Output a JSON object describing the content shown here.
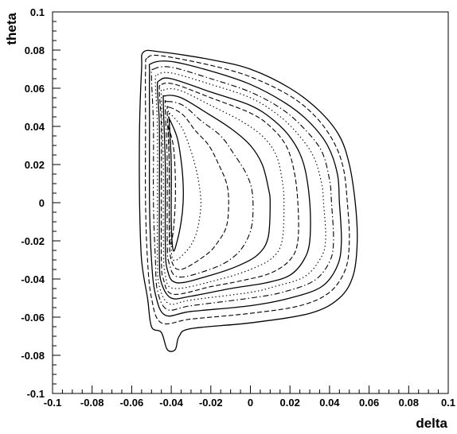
{
  "chart_data": {
    "type": "contour",
    "title": "",
    "xlabel": "delta",
    "ylabel": "theta",
    "xlim": [
      -0.1,
      0.1
    ],
    "ylim": [
      -0.1,
      0.1
    ],
    "xticks": [
      "-0.1",
      "-0.08",
      "-0.06",
      "-0.04",
      "-0.02",
      "0",
      "0.02",
      "0.04",
      "0.06",
      "0.08",
      "0.1"
    ],
    "yticks": [
      "-0.1",
      "-0.08",
      "-0.06",
      "-0.04",
      "-0.02",
      "0",
      "0.02",
      "0.04",
      "0.06",
      "0.08",
      "0.1"
    ],
    "grid": false,
    "legend": "none",
    "line_color": "#000000",
    "density_peak": {
      "delta": -0.042,
      "theta": 0.0
    },
    "contours": [
      {
        "level": 1,
        "style": "solid",
        "points": [
          [
            -0.054,
            0.079
          ],
          [
            -0.045,
            0.079
          ],
          [
            -0.02,
            0.075
          ],
          [
            0.0,
            0.07
          ],
          [
            0.02,
            0.06
          ],
          [
            0.035,
            0.048
          ],
          [
            0.045,
            0.035
          ],
          [
            0.05,
            0.02
          ],
          [
            0.053,
            0.0
          ],
          [
            0.054,
            -0.02
          ],
          [
            0.052,
            -0.038
          ],
          [
            0.045,
            -0.05
          ],
          [
            0.03,
            -0.058
          ],
          [
            0.0,
            -0.063
          ],
          [
            -0.03,
            -0.066
          ],
          [
            -0.036,
            -0.07
          ],
          [
            -0.038,
            -0.077
          ],
          [
            -0.042,
            -0.077
          ],
          [
            -0.045,
            -0.068
          ],
          [
            -0.05,
            -0.065
          ],
          [
            -0.052,
            -0.05
          ],
          [
            -0.055,
            -0.03
          ],
          [
            -0.056,
            0.0
          ],
          [
            -0.056,
            0.04
          ],
          [
            -0.055,
            0.07
          ]
        ]
      },
      {
        "level": 2,
        "style": "dashed",
        "points": [
          [
            -0.052,
            0.076
          ],
          [
            -0.045,
            0.077
          ],
          [
            -0.02,
            0.072
          ],
          [
            0.0,
            0.066
          ],
          [
            0.02,
            0.056
          ],
          [
            0.033,
            0.045
          ],
          [
            0.042,
            0.032
          ],
          [
            0.047,
            0.018
          ],
          [
            0.049,
            0.0
          ],
          [
            0.05,
            -0.02
          ],
          [
            0.048,
            -0.035
          ],
          [
            0.04,
            -0.047
          ],
          [
            0.025,
            -0.054
          ],
          [
            0.0,
            -0.058
          ],
          [
            -0.03,
            -0.061
          ],
          [
            -0.045,
            -0.063
          ],
          [
            -0.05,
            -0.05
          ],
          [
            -0.052,
            -0.03
          ],
          [
            -0.053,
            0.0
          ],
          [
            -0.053,
            0.04
          ],
          [
            -0.053,
            0.07
          ]
        ]
      },
      {
        "level": 3,
        "style": "solid",
        "points": [
          [
            -0.05,
            0.073
          ],
          [
            -0.04,
            0.074
          ],
          [
            -0.02,
            0.069
          ],
          [
            0.0,
            0.062
          ],
          [
            0.018,
            0.052
          ],
          [
            0.03,
            0.042
          ],
          [
            0.039,
            0.03
          ],
          [
            0.044,
            0.015
          ],
          [
            0.045,
            0.0
          ],
          [
            0.046,
            -0.02
          ],
          [
            0.044,
            -0.033
          ],
          [
            0.036,
            -0.044
          ],
          [
            0.02,
            -0.05
          ],
          [
            0.0,
            -0.054
          ],
          [
            -0.03,
            -0.057
          ],
          [
            -0.043,
            -0.059
          ],
          [
            -0.048,
            -0.048
          ],
          [
            -0.05,
            -0.03
          ],
          [
            -0.051,
            0.0
          ],
          [
            -0.051,
            0.04
          ],
          [
            -0.051,
            0.068
          ]
        ]
      },
      {
        "level": 4,
        "style": "dashdot",
        "points": [
          [
            -0.049,
            0.07
          ],
          [
            -0.04,
            0.071
          ],
          [
            -0.02,
            0.065
          ],
          [
            0.0,
            0.058
          ],
          [
            0.016,
            0.049
          ],
          [
            0.027,
            0.039
          ],
          [
            0.036,
            0.027
          ],
          [
            0.04,
            0.012
          ],
          [
            0.041,
            0.0
          ],
          [
            0.042,
            -0.02
          ],
          [
            0.04,
            -0.031
          ],
          [
            0.032,
            -0.041
          ],
          [
            0.016,
            -0.047
          ],
          [
            0.0,
            -0.05
          ],
          [
            -0.03,
            -0.054
          ],
          [
            -0.042,
            -0.056
          ],
          [
            -0.047,
            -0.046
          ],
          [
            -0.048,
            -0.03
          ],
          [
            -0.049,
            0.0
          ],
          [
            -0.049,
            0.04
          ],
          [
            -0.05,
            0.066
          ]
        ]
      },
      {
        "level": 5,
        "style": "dotted",
        "points": [
          [
            -0.047,
            0.067
          ],
          [
            -0.04,
            0.068
          ],
          [
            -0.02,
            0.062
          ],
          [
            0.0,
            0.055
          ],
          [
            0.014,
            0.046
          ],
          [
            0.024,
            0.036
          ],
          [
            0.032,
            0.024
          ],
          [
            0.036,
            0.01
          ],
          [
            0.037,
            0.0
          ],
          [
            0.038,
            -0.02
          ],
          [
            0.035,
            -0.03
          ],
          [
            0.027,
            -0.039
          ],
          [
            0.012,
            -0.044
          ],
          [
            0.0,
            -0.047
          ],
          [
            -0.03,
            -0.051
          ],
          [
            -0.041,
            -0.053
          ],
          [
            -0.046,
            -0.044
          ],
          [
            -0.047,
            -0.03
          ],
          [
            -0.047,
            0.0
          ],
          [
            -0.047,
            0.04
          ],
          [
            -0.048,
            0.063
          ]
        ]
      },
      {
        "level": 6,
        "style": "solid",
        "points": [
          [
            -0.046,
            0.064
          ],
          [
            -0.04,
            0.065
          ],
          [
            -0.02,
            0.058
          ],
          [
            0.0,
            0.051
          ],
          [
            0.012,
            0.043
          ],
          [
            0.021,
            0.033
          ],
          [
            0.027,
            0.02
          ],
          [
            0.03,
            0.0
          ],
          [
            0.03,
            -0.02
          ],
          [
            0.027,
            -0.03
          ],
          [
            0.02,
            -0.038
          ],
          [
            0.008,
            -0.042
          ],
          [
            -0.01,
            -0.045
          ],
          [
            -0.03,
            -0.049
          ],
          [
            -0.04,
            -0.05
          ],
          [
            -0.045,
            -0.042
          ],
          [
            -0.046,
            -0.03
          ],
          [
            -0.046,
            0.0
          ],
          [
            -0.046,
            0.04
          ],
          [
            -0.047,
            0.06
          ]
        ]
      },
      {
        "level": 7,
        "style": "dashed",
        "points": [
          [
            -0.045,
            0.062
          ],
          [
            -0.038,
            0.062
          ],
          [
            -0.02,
            0.055
          ],
          [
            0.0,
            0.047
          ],
          [
            0.01,
            0.04
          ],
          [
            0.018,
            0.03
          ],
          [
            0.022,
            0.017
          ],
          [
            0.024,
            0.0
          ],
          [
            0.024,
            -0.02
          ],
          [
            0.02,
            -0.03
          ],
          [
            0.01,
            -0.037
          ],
          [
            -0.005,
            -0.041
          ],
          [
            -0.02,
            -0.044
          ],
          [
            -0.039,
            -0.048
          ],
          [
            -0.044,
            -0.04
          ],
          [
            -0.045,
            -0.03
          ],
          [
            -0.045,
            0.0
          ],
          [
            -0.045,
            0.04
          ],
          [
            -0.046,
            0.058
          ]
        ]
      },
      {
        "level": 8,
        "style": "dotted",
        "points": [
          [
            -0.044,
            0.059
          ],
          [
            -0.036,
            0.059
          ],
          [
            -0.02,
            0.051
          ],
          [
            -0.005,
            0.043
          ],
          [
            0.006,
            0.035
          ],
          [
            0.013,
            0.025
          ],
          [
            0.016,
            0.012
          ],
          [
            0.017,
            0.0
          ],
          [
            0.016,
            -0.02
          ],
          [
            0.011,
            -0.029
          ],
          [
            0.0,
            -0.035
          ],
          [
            -0.015,
            -0.04
          ],
          [
            -0.038,
            -0.045
          ],
          [
            -0.043,
            -0.038
          ],
          [
            -0.044,
            -0.02
          ],
          [
            -0.044,
            0.02
          ],
          [
            -0.045,
            0.055
          ]
        ]
      },
      {
        "level": 9,
        "style": "solid",
        "points": [
          [
            -0.043,
            0.056
          ],
          [
            -0.035,
            0.055
          ],
          [
            -0.022,
            0.047
          ],
          [
            -0.01,
            0.039
          ],
          [
            0.0,
            0.03
          ],
          [
            0.006,
            0.02
          ],
          [
            0.009,
            0.008
          ],
          [
            0.01,
            0.0
          ],
          [
            0.009,
            -0.018
          ],
          [
            0.004,
            -0.027
          ],
          [
            -0.006,
            -0.033
          ],
          [
            -0.02,
            -0.038
          ],
          [
            -0.037,
            -0.042
          ],
          [
            -0.042,
            -0.035
          ],
          [
            -0.043,
            -0.02
          ],
          [
            -0.043,
            0.02
          ],
          [
            -0.044,
            0.052
          ]
        ]
      },
      {
        "level": 10,
        "style": "dashdot",
        "points": [
          [
            -0.042,
            0.053
          ],
          [
            -0.034,
            0.051
          ],
          [
            -0.025,
            0.043
          ],
          [
            -0.015,
            0.035
          ],
          [
            -0.008,
            0.025
          ],
          [
            -0.002,
            0.015
          ],
          [
            0.001,
            0.005
          ],
          [
            0.001,
            -0.01
          ],
          [
            -0.002,
            -0.02
          ],
          [
            -0.008,
            -0.028
          ],
          [
            -0.018,
            -0.034
          ],
          [
            -0.036,
            -0.039
          ],
          [
            -0.041,
            -0.032
          ],
          [
            -0.042,
            -0.02
          ],
          [
            -0.042,
            0.02
          ],
          [
            -0.043,
            0.05
          ]
        ]
      },
      {
        "level": 11,
        "style": "dashed",
        "points": [
          [
            -0.041,
            0.05
          ],
          [
            -0.034,
            0.046
          ],
          [
            -0.028,
            0.038
          ],
          [
            -0.021,
            0.03
          ],
          [
            -0.016,
            0.02
          ],
          [
            -0.012,
            0.01
          ],
          [
            -0.011,
            0.0
          ],
          [
            -0.012,
            -0.012
          ],
          [
            -0.016,
            -0.02
          ],
          [
            -0.022,
            -0.027
          ],
          [
            -0.035,
            -0.035
          ],
          [
            -0.04,
            -0.03
          ],
          [
            -0.041,
            -0.015
          ],
          [
            -0.041,
            0.02
          ],
          [
            -0.042,
            0.047
          ]
        ]
      },
      {
        "level": 12,
        "style": "dotted",
        "points": [
          [
            -0.041,
            0.047
          ],
          [
            -0.035,
            0.04
          ],
          [
            -0.031,
            0.03
          ],
          [
            -0.028,
            0.02
          ],
          [
            -0.026,
            0.01
          ],
          [
            -0.025,
            0.0
          ],
          [
            -0.026,
            -0.01
          ],
          [
            -0.028,
            -0.018
          ],
          [
            -0.032,
            -0.025
          ],
          [
            -0.039,
            -0.03
          ],
          [
            -0.04,
            -0.015
          ],
          [
            -0.04,
            0.02
          ],
          [
            -0.041,
            0.045
          ]
        ]
      },
      {
        "level": 13,
        "style": "solid",
        "points": [
          [
            -0.041,
            0.044
          ],
          [
            -0.037,
            0.034
          ],
          [
            -0.035,
            0.022
          ],
          [
            -0.034,
            0.01
          ],
          [
            -0.034,
            0.0
          ],
          [
            -0.035,
            -0.01
          ],
          [
            -0.037,
            -0.02
          ],
          [
            -0.039,
            -0.025
          ],
          [
            -0.04,
            -0.01
          ],
          [
            -0.04,
            0.02
          ],
          [
            -0.041,
            0.042
          ]
        ]
      },
      {
        "level": 14,
        "style": "dashed",
        "points": [
          [
            -0.0415,
            0.04
          ],
          [
            -0.039,
            0.03
          ],
          [
            -0.038,
            0.015
          ],
          [
            -0.038,
            0.0
          ],
          [
            -0.039,
            -0.015
          ],
          [
            -0.0405,
            -0.022
          ],
          [
            -0.041,
            -0.005
          ],
          [
            -0.041,
            0.02
          ],
          [
            -0.0415,
            0.038
          ]
        ]
      }
    ]
  }
}
